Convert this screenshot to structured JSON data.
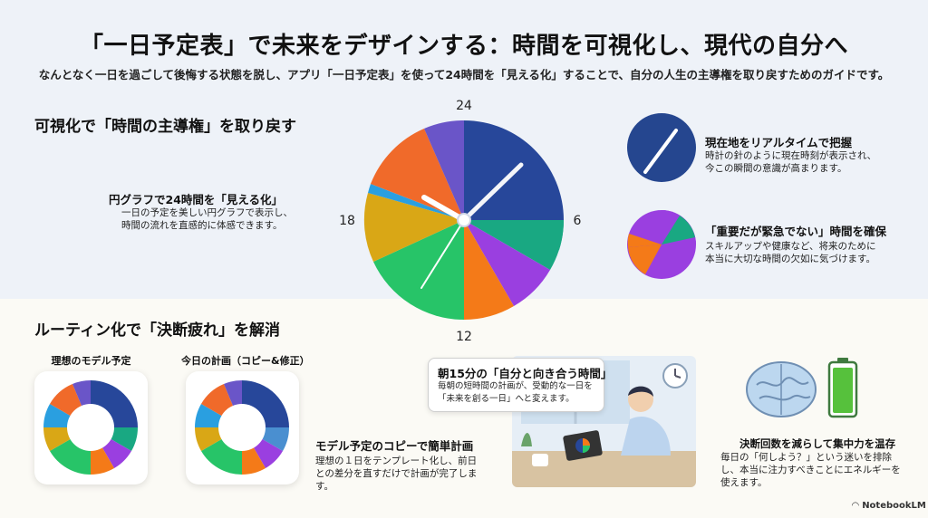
{
  "header": {
    "title": "「一日予定表」で未来をデザインする：時間を可視化し、現代の自分へ",
    "subtitle": "なんとなく一日を過ごして後悔する状態を脱し、アプリ「一日予定表」を使って24時間を「見える化」することで、自分の人生の主導権を取り戻すためのガイドです。"
  },
  "section1": {
    "heading": "可視化で「時間の主導権」を取り戻す",
    "pie_title": "円グラフで24時間を「見える化」",
    "pie_body": [
      "一日の予定を美しい円グラフで表示し、",
      "時間の流れを直感的に体感できます。"
    ],
    "clock_labels": {
      "top": "24",
      "right": "6",
      "bottom": "12",
      "left": "18"
    },
    "feature1_title": "現在地をリアルタイムで把握",
    "feature1_body": [
      "時計の針のように現在時刻が表示され、",
      "今この瞬間の意識が高まります。"
    ],
    "feature2_title": "「重要だが緊急でない」時間を確保",
    "feature2_body": [
      "スキルアップや健康など、将来のために",
      "本当に大切な時間の欠如に気づけます。"
    ]
  },
  "section2": {
    "heading": "ルーティン化で「決断疲れ」を解消",
    "card1_title": "理想のモデル予定",
    "card2_title": "今日の計画（コピー&修正）",
    "copy_title": "モデル予定のコピーで簡単計画",
    "copy_body": [
      "理想の１日をテンプレート化し、前日",
      "との差分を直すだけで計画が完了しま",
      "す。"
    ],
    "morning_title": "朝15分の「自分と向き合う時間」",
    "morning_body": [
      "毎朝の短時間の計画が、受動的な一日を",
      "「未来を創る一日」へと変えます。"
    ],
    "focus_title": "決断回数を減らして集中力を温存",
    "focus_body": [
      "毎日の「何しよう？」という迷いを排除",
      "し、本当に注力すべきことにエネルギーを",
      "使えます。"
    ]
  },
  "footer": {
    "logo_text": "NotebookLM"
  },
  "icons": [
    "clock-hand-icon",
    "pie-icon",
    "brain-icon",
    "battery-icon",
    "notebooklm-logo-icon"
  ],
  "colors": {
    "navy": "#27479a",
    "teal": "#19a882",
    "purple": "#9a3fe0",
    "orange": "#f47a18",
    "green": "#27c468",
    "mustard": "#d9a716",
    "sky": "#2a9fe0",
    "red_orange": "#f06a2a",
    "indigo": "#6a55c8"
  }
}
